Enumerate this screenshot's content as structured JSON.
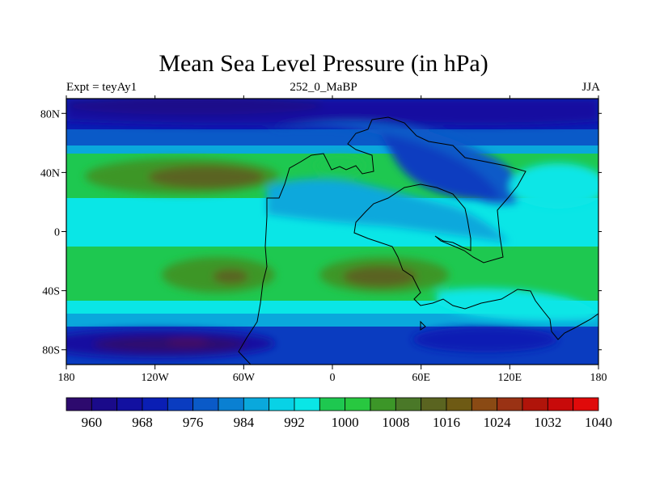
{
  "title": "Mean Sea Level Pressure (in hPa)",
  "left_label": "Expt = teyAy1",
  "center_label": "252_0_MaBP",
  "right_label": "JJA",
  "x_ticks": [
    {
      "lon": -180,
      "label": "180"
    },
    {
      "lon": -120,
      "label": "120W"
    },
    {
      "lon": -60,
      "label": "60W"
    },
    {
      "lon": 0,
      "label": "0"
    },
    {
      "lon": 60,
      "label": "60E"
    },
    {
      "lon": 120,
      "label": "120E"
    },
    {
      "lon": 180,
      "label": "180"
    }
  ],
  "y_ticks": [
    {
      "lat": 80,
      "label": "80N"
    },
    {
      "lat": 40,
      "label": "40N"
    },
    {
      "lat": 0,
      "label": "0"
    },
    {
      "lat": -40,
      "label": "40S"
    },
    {
      "lat": -80,
      "label": "80S"
    }
  ],
  "lon_range": [
    -180,
    180
  ],
  "lat_range": [
    -90,
    90
  ],
  "colorbar": {
    "colors": [
      "#2d0a6e",
      "#1a0a8a",
      "#1210a0",
      "#0a1eb4",
      "#0a3cc0",
      "#0a5ac8",
      "#0a80d2",
      "#0aa8dc",
      "#08d2e6",
      "#0ae6e6",
      "#1ec850",
      "#28c840",
      "#3c9628",
      "#4a7828",
      "#5a6420",
      "#6e5a14",
      "#8a4a14",
      "#9a3214",
      "#b0140a",
      "#c80a0a",
      "#e00a0a"
    ],
    "labels": [
      {
        "index": 1,
        "text": "960"
      },
      {
        "index": 3,
        "text": "968"
      },
      {
        "index": 5,
        "text": "976"
      },
      {
        "index": 7,
        "text": "984"
      },
      {
        "index": 9,
        "text": "992"
      },
      {
        "index": 11,
        "text": "1000"
      },
      {
        "index": 13,
        "text": "1008"
      },
      {
        "index": 15,
        "text": "1016"
      },
      {
        "index": 17,
        "text": "1024"
      },
      {
        "index": 19,
        "text": "1032"
      },
      {
        "index": 21,
        "text": "1040"
      }
    ]
  }
}
